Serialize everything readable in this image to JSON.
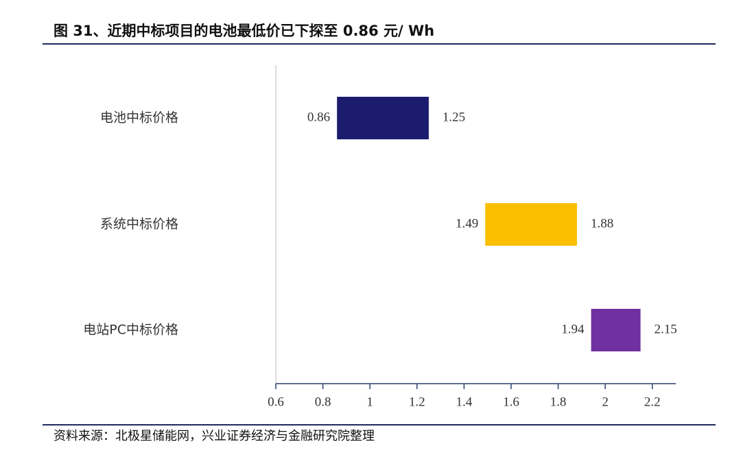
{
  "chart_data": {
    "type": "rangebar",
    "title": "图 31、近期中标项目的电池最低价已下探至 0.86 元/ Wh",
    "source": "资料来源：北极星储能网，兴业证券经济与金融研究院整理",
    "categories": [
      "电池中标价格",
      "系统中标价格",
      "电站PC中标价格"
    ],
    "low": [
      0.86,
      1.49,
      1.94
    ],
    "high": [
      1.25,
      1.88,
      2.15
    ],
    "colors": [
      "#1c1c6e",
      "#fbbf00",
      "#7030a0"
    ],
    "xlim": [
      0.6,
      2.3
    ],
    "xticks": [
      0.6,
      0.8,
      1,
      1.2,
      1.4,
      1.6,
      1.8,
      2,
      2.2
    ]
  }
}
